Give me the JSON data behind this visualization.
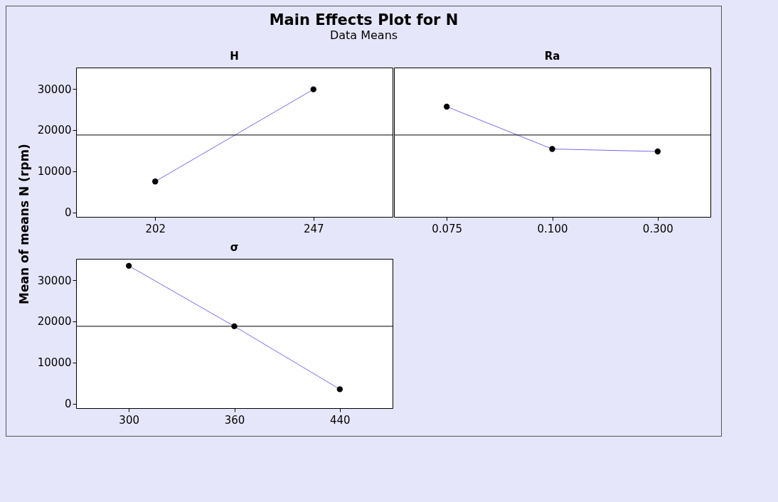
{
  "chart_data": [
    {
      "type": "line",
      "title": "H",
      "annotations": [
        "Main Effects Plot for N",
        "Data Means"
      ],
      "ylabel": "Mean of means N (rpm)",
      "categories": [
        "202",
        "247"
      ],
      "series": [
        {
          "color": "#7b68ee",
          "values": [
            7500,
            29900
          ]
        }
      ],
      "ylim": [
        -1100,
        35200
      ],
      "yticks": [
        0,
        10000,
        20000,
        30000
      ],
      "marker": "circle",
      "grid": false,
      "ref_lines": [
        {
          "axis": "y",
          "value": 18800,
          "color": "#000000"
        }
      ]
    },
    {
      "type": "line",
      "title": "Ra",
      "categories": [
        "0.075",
        "0.100",
        "0.300"
      ],
      "series": [
        {
          "color": "#7b68ee",
          "values": [
            25700,
            15400,
            14800
          ]
        }
      ],
      "ylim": [
        -1100,
        35200
      ],
      "yticks": [
        0,
        10000,
        20000,
        30000
      ],
      "tick_labels": "x",
      "marker": "circle",
      "grid": false,
      "ref_lines": [
        {
          "axis": "y",
          "value": 18800,
          "color": "#000000"
        }
      ]
    },
    {
      "type": "line",
      "title": "σ",
      "categories": [
        "300",
        "360",
        "440"
      ],
      "series": [
        {
          "color": "#7b68ee",
          "values": [
            33500,
            18800,
            3500
          ]
        }
      ],
      "ylim": [
        -1100,
        35200
      ],
      "yticks": [
        0,
        10000,
        20000,
        30000
      ],
      "marker": "circle",
      "grid": false,
      "ref_lines": [
        {
          "axis": "y",
          "value": 18800,
          "color": "#000000"
        }
      ]
    }
  ]
}
